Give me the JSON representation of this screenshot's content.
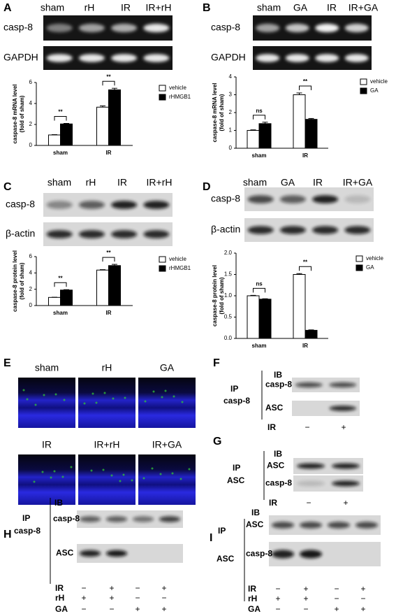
{
  "chart_data": [
    {
      "type": "bar",
      "ylabel": [
        "caspase-8 mRNA level",
        "(fold of sham)"
      ],
      "categories": [
        "sham",
        "IR"
      ],
      "series": [
        {
          "name": "vehicle",
          "color": "#ffffff",
          "values": [
            1,
            3.65
          ],
          "errors": [
            0.03,
            0.12
          ]
        },
        {
          "name": "rHMGB1",
          "color": "#000000",
          "values": [
            2.05,
            5.3
          ],
          "errors": [
            0.05,
            0.15
          ]
        }
      ],
      "ylim": [
        0,
        6
      ],
      "yticks": [
        0,
        2,
        4,
        6
      ],
      "annotations": [
        "**",
        "**"
      ],
      "legend": "right"
    },
    {
      "type": "bar",
      "ylabel": [
        "caspase-8 mRNA level",
        "(fold of sham)"
      ],
      "categories": [
        "sham",
        "IR"
      ],
      "series": [
        {
          "name": "vehicle",
          "color": "#ffffff",
          "values": [
            1,
            3
          ],
          "errors": [
            0.03,
            0.1
          ]
        },
        {
          "name": "GA",
          "color": "#000000",
          "values": [
            1.38,
            1.62
          ],
          "errors": [
            0.08,
            0.05
          ]
        }
      ],
      "ylim": [
        0,
        4
      ],
      "yticks": [
        0,
        1,
        2,
        3,
        4
      ],
      "annotations": [
        "ns",
        "**"
      ],
      "legend": "right"
    },
    {
      "type": "bar",
      "ylabel": [
        "caspase-8 protein level",
        "(fold of sham)"
      ],
      "categories": [
        "sham",
        "IR"
      ],
      "series": [
        {
          "name": "vehicle",
          "color": "#ffffff",
          "values": [
            1,
            4.35
          ],
          "errors": [
            0.02,
            0.05
          ]
        },
        {
          "name": "rHMGB1",
          "color": "#000000",
          "values": [
            1.9,
            4.9
          ],
          "errors": [
            0.05,
            0.15
          ]
        }
      ],
      "ylim": [
        0,
        6
      ],
      "yticks": [
        0,
        2,
        4,
        6
      ],
      "annotations": [
        "**",
        "**"
      ],
      "legend": "right"
    },
    {
      "type": "bar",
      "ylabel": [
        "caspase-8 protein level",
        "(fold of sham)"
      ],
      "categories": [
        "sham",
        "IR"
      ],
      "series": [
        {
          "name": "vehicle",
          "color": "#ffffff",
          "values": [
            1,
            1.5
          ],
          "errors": [
            0.01,
            0.02
          ]
        },
        {
          "name": "GA",
          "color": "#000000",
          "values": [
            0.92,
            0.19
          ],
          "errors": [
            0.01,
            0.01
          ]
        }
      ],
      "ylim": [
        0,
        2
      ],
      "yticks": [
        {
          "value": 0,
          "label": "0.0"
        },
        0.5,
        {
          "value": 1,
          "label": "1.0"
        },
        1.5,
        {
          "value": 2,
          "label": "2.0"
        }
      ],
      "annotations": [
        "ns",
        "**"
      ],
      "legend": "right"
    }
  ],
  "panels": {
    "A": {
      "label": "A",
      "lanes": [
        "sham",
        "rH",
        "IR",
        "IR+rH"
      ],
      "rows": [
        "casp-8",
        "GAPDH"
      ]
    },
    "B": {
      "label": "B",
      "lanes": [
        "sham",
        "GA",
        "IR",
        "IR+GA"
      ],
      "rows": [
        "casp-8",
        "GAPDH"
      ]
    },
    "C": {
      "label": "C",
      "lanes": [
        "sham",
        "rH",
        "IR",
        "IR+rH"
      ],
      "rows": [
        "casp-8",
        "β-actin"
      ]
    },
    "D": {
      "label": "D",
      "lanes": [
        "sham",
        "GA",
        "IR",
        "IR+GA"
      ],
      "rows": [
        "casp-8",
        "β-actin"
      ]
    },
    "E": {
      "label": "E",
      "images": [
        "sham",
        "rH",
        "GA",
        "IR",
        "IR+rH",
        "IR+GA"
      ]
    },
    "F": {
      "label": "F",
      "ib": "IB",
      "ip": "IP",
      "ip_target": "casp-8",
      "rows": [
        "casp-8",
        "ASC"
      ],
      "conditions": [
        {
          "name": "IR",
          "marks": [
            "−",
            "+"
          ]
        }
      ]
    },
    "G": {
      "label": "G",
      "ib": "IB",
      "ip": "IP",
      "ip_target": "ASC",
      "rows": [
        "ASC",
        "casp-8"
      ],
      "conditions": [
        {
          "name": "IR",
          "marks": [
            "−",
            "+"
          ]
        }
      ]
    },
    "H": {
      "label": "H",
      "ib": "IB",
      "ip": "IP",
      "ip_target": "casp-8",
      "rows": [
        "casp-8",
        "ASC"
      ],
      "conditions": [
        {
          "name": "IR",
          "marks": [
            "−",
            "+",
            "−",
            "+"
          ]
        },
        {
          "name": "rH",
          "marks": [
            "+",
            "+",
            "−",
            "−"
          ]
        },
        {
          "name": "GA",
          "marks": [
            "−",
            "−",
            "+",
            "+"
          ]
        }
      ]
    },
    "I": {
      "label": "I",
      "ib": "IB",
      "ip": "IP",
      "ip_target": "ASC",
      "rows": [
        "ASC",
        "casp-8"
      ],
      "conditions": [
        {
          "name": "IR",
          "marks": [
            "−",
            "+",
            "−",
            "+"
          ]
        },
        {
          "name": "rH",
          "marks": [
            "+",
            "+",
            "−",
            "−"
          ]
        },
        {
          "name": "GA",
          "marks": [
            "−",
            "−",
            "+",
            "+"
          ]
        }
      ]
    }
  }
}
